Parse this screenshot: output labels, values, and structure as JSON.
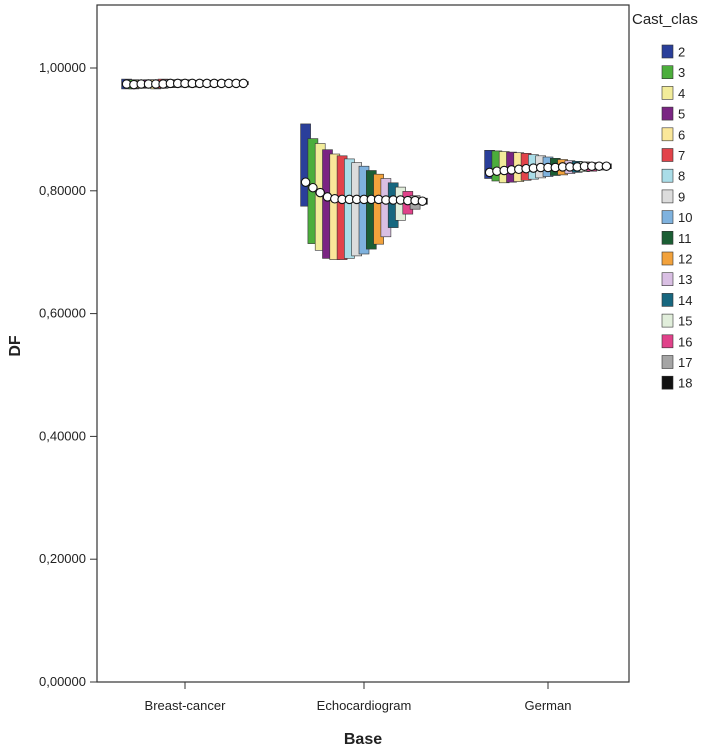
{
  "chart_data": {
    "type": "bar",
    "xlabel": "Base",
    "ylabel": "DF",
    "ylim": [
      0,
      1.1
    ],
    "grid": false,
    "legend_position": "right",
    "legend_title": "Cast_clas",
    "y_ticks": [
      {
        "value": 0.0,
        "label": "0,00000"
      },
      {
        "value": 0.2,
        "label": "0,20000"
      },
      {
        "value": 0.4,
        "label": "0,40000"
      },
      {
        "value": 0.6,
        "label": "0,60000"
      },
      {
        "value": 0.8,
        "label": "0,80000"
      },
      {
        "value": 1.0,
        "label": "1,00000"
      }
    ],
    "categories": [
      "Breast-cancer",
      "Echocardiogram",
      "German"
    ],
    "series": [
      {
        "name": "2",
        "color": "#2a3f9a",
        "low": [
          0.966,
          0.775,
          0.82
        ],
        "high": [
          0.982,
          0.909,
          0.866
        ],
        "mean": [
          0.974,
          0.814,
          0.83
        ]
      },
      {
        "name": "3",
        "color": "#4cae3c",
        "low": [
          0.966,
          0.714,
          0.816
        ],
        "high": [
          0.981,
          0.885,
          0.865
        ],
        "mean": [
          0.973,
          0.805,
          0.832
        ]
      },
      {
        "name": "4",
        "color": "#f2ec9a",
        "low": [
          0.967,
          0.703,
          0.813
        ],
        "high": [
          0.98,
          0.877,
          0.864
        ],
        "mean": [
          0.974,
          0.797,
          0.833
        ]
      },
      {
        "name": "5",
        "color": "#7a2583",
        "low": [
          0.968,
          0.69,
          0.814
        ],
        "high": [
          0.981,
          0.867,
          0.863
        ],
        "mean": [
          0.974,
          0.79,
          0.834
        ]
      },
      {
        "name": "6",
        "color": "#fae79a",
        "low": [
          0.966,
          0.688,
          0.815
        ],
        "high": [
          0.981,
          0.86,
          0.862
        ],
        "mean": [
          0.974,
          0.787,
          0.835
        ]
      },
      {
        "name": "7",
        "color": "#e2434a",
        "low": [
          0.967,
          0.688,
          0.817
        ],
        "high": [
          0.982,
          0.857,
          0.861
        ],
        "mean": [
          0.974,
          0.786,
          0.836
        ]
      },
      {
        "name": "8",
        "color": "#aadde8",
        "low": [
          0.968,
          0.69,
          0.819
        ],
        "high": [
          0.981,
          0.852,
          0.859
        ],
        "mean": [
          0.975,
          0.786,
          0.837
        ]
      },
      {
        "name": "9",
        "color": "#dcdcdc",
        "low": [
          0.969,
          0.694,
          0.821
        ],
        "high": [
          0.981,
          0.846,
          0.857
        ],
        "mean": [
          0.975,
          0.786,
          0.838
        ]
      },
      {
        "name": "10",
        "color": "#7fb2de",
        "low": [
          0.969,
          0.697,
          0.823
        ],
        "high": [
          0.981,
          0.84,
          0.855
        ],
        "mean": [
          0.975,
          0.786,
          0.838
        ]
      },
      {
        "name": "11",
        "color": "#1b5e34",
        "low": [
          0.969,
          0.705,
          0.825
        ],
        "high": [
          0.98,
          0.833,
          0.853
        ],
        "mean": [
          0.975,
          0.786,
          0.838
        ]
      },
      {
        "name": "12",
        "color": "#f2a23c",
        "low": [
          0.97,
          0.713,
          0.826
        ],
        "high": [
          0.98,
          0.827,
          0.851
        ],
        "mean": [
          0.975,
          0.786,
          0.839
        ]
      },
      {
        "name": "13",
        "color": "#d9bfe3",
        "low": [
          0.97,
          0.725,
          0.828
        ],
        "high": [
          0.98,
          0.82,
          0.849
        ],
        "mean": [
          0.975,
          0.785,
          0.839
        ]
      },
      {
        "name": "14",
        "color": "#17677f",
        "low": [
          0.97,
          0.74,
          0.83
        ],
        "high": [
          0.98,
          0.813,
          0.848
        ],
        "mean": [
          0.975,
          0.785,
          0.839
        ]
      },
      {
        "name": "15",
        "color": "#e1eedb",
        "low": [
          0.971,
          0.752,
          0.831
        ],
        "high": [
          0.98,
          0.806,
          0.847
        ],
        "mean": [
          0.975,
          0.785,
          0.84
        ]
      },
      {
        "name": "16",
        "color": "#e0428a",
        "low": [
          0.971,
          0.762,
          0.832
        ],
        "high": [
          0.979,
          0.799,
          0.846
        ],
        "mean": [
          0.975,
          0.784,
          0.84
        ]
      },
      {
        "name": "17",
        "color": "#a5a5a5",
        "low": [
          0.972,
          0.77,
          0.834
        ],
        "high": [
          0.979,
          0.792,
          0.845
        ],
        "mean": [
          0.975,
          0.784,
          0.84
        ]
      },
      {
        "name": "18",
        "color": "#111111",
        "low": [
          0.973,
          0.778,
          0.836
        ],
        "high": [
          0.978,
          0.788,
          0.844
        ],
        "mean": [
          0.975,
          0.783,
          0.84
        ]
      }
    ]
  }
}
